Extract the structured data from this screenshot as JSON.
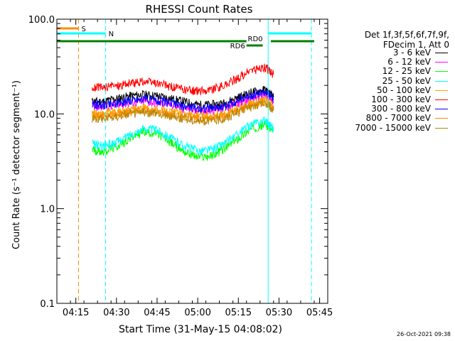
{
  "chart_data": {
    "type": "line",
    "title": "RHESSI Count Rates",
    "xlabel": "Start Time (31-May-15 04:08:02)",
    "ylabel": "Count Rate (s⁻¹ detector segment⁻¹)",
    "y_scale": "log",
    "ylim": [
      0.1,
      100.0
    ],
    "xlim": [
      "04:08",
      "05:48"
    ],
    "x_ticks": [
      "04:15",
      "04:30",
      "04:45",
      "05:00",
      "05:15",
      "05:30",
      "05:45"
    ],
    "y_ticks": [
      "0.1",
      "1.0",
      "10.0",
      "100.0"
    ],
    "grid": false,
    "legend_placement": "right",
    "x": [
      "04:21",
      "04:25",
      "04:30",
      "04:35",
      "04:40",
      "04:45",
      "04:50",
      "04:55",
      "05:00",
      "05:05",
      "05:10",
      "05:15",
      "05:20",
      "05:25",
      "05:28"
    ],
    "series": [
      {
        "name": "3 - 6 keV",
        "color": "#000000",
        "values": [
          13.5,
          13.5,
          14.5,
          15.5,
          16,
          15.5,
          14.5,
          13.5,
          12.5,
          12.5,
          13,
          15,
          17,
          18,
          15
        ]
      },
      {
        "name": "6 - 12 keV",
        "color": "#ff00ff",
        "values": [
          12,
          12,
          12.5,
          13,
          13.5,
          13,
          12.5,
          11.5,
          11,
          11,
          11.5,
          13,
          14.5,
          15.5,
          13
        ]
      },
      {
        "name": "12 - 25 keV",
        "color": "#00ff00",
        "values": [
          4.2,
          4.0,
          4.5,
          5.5,
          6.5,
          6.2,
          5.0,
          4.0,
          3.5,
          3.6,
          4.3,
          5.5,
          7.0,
          7.8,
          6.5
        ]
      },
      {
        "name": "25 - 50 keV",
        "color": "#00ffff",
        "values": [
          4.8,
          4.6,
          5.0,
          6.0,
          7.0,
          6.8,
          5.6,
          4.6,
          4.1,
          4.2,
          4.9,
          6.2,
          7.8,
          8.6,
          7.0
        ]
      },
      {
        "name": "50 - 100 keV",
        "color": "#ffa500",
        "values": [
          10,
          10,
          10.5,
          11,
          11.5,
          11,
          10.5,
          10,
          9.5,
          9.5,
          10,
          11.5,
          13,
          14,
          12
        ]
      },
      {
        "name": "100 - 300 keV",
        "color": "#ff0000",
        "values": [
          19,
          19,
          20,
          21,
          22,
          21,
          19.5,
          18,
          17.5,
          18,
          20,
          24,
          29,
          31,
          26
        ]
      },
      {
        "name": "300 - 800 keV",
        "color": "#0000ff",
        "values": [
          12.5,
          12.5,
          13,
          14,
          14.5,
          14,
          13,
          12,
          11.5,
          11.5,
          12,
          14,
          16,
          17,
          14.5
        ]
      },
      {
        "name": "800 - 7000 keV",
        "color": "#ff8c00",
        "values": [
          9.5,
          9.5,
          10,
          10.5,
          11,
          10.5,
          10,
          9.5,
          9.0,
          9.0,
          9.5,
          11,
          12.5,
          13.5,
          11.5
        ]
      },
      {
        "name": "7000 - 15000 keV",
        "color": "#b8860b",
        "values": [
          9,
          9,
          9.5,
          10,
          10.5,
          10,
          9.5,
          9,
          8.5,
          8.5,
          9,
          10.5,
          12,
          13,
          11
        ]
      }
    ],
    "vertical_markers": [
      {
        "time": "04:08",
        "color": "#00ffff",
        "style": "solid"
      },
      {
        "time": "04:16",
        "color": "#ff8c00",
        "style": "dashed"
      },
      {
        "time": "04:26",
        "color": "#00ffff",
        "style": "dashed"
      },
      {
        "time": "05:26",
        "color": "#00ffff",
        "style": "solid"
      },
      {
        "time": "05:42",
        "color": "#00ffff",
        "style": "dashed"
      }
    ],
    "state_bars": [
      {
        "label": "S",
        "start": "04:08",
        "end": "04:16",
        "color": "#ff8c00"
      },
      {
        "label": "N",
        "start": "04:08",
        "end": "04:26",
        "color": "#00ffff"
      },
      {
        "label": "N",
        "start": "05:26",
        "end": "05:42",
        "color": "#00ffff"
      },
      {
        "label": "RD0",
        "start": "05:18",
        "end": "05:24",
        "color": "#008000"
      },
      {
        "label": "RD6",
        "start": "04:08",
        "end": "05:18",
        "color": "#008000"
      },
      {
        "label": "",
        "start": "05:27",
        "end": "05:43",
        "color": "#008000"
      }
    ]
  },
  "legend": {
    "header_line1": "Det 1f,3f,5f,6f,7f,9f,",
    "header_line2": "FDecim 1, Att 0"
  },
  "footer_stamp": "26-Oct-2021 09:38"
}
